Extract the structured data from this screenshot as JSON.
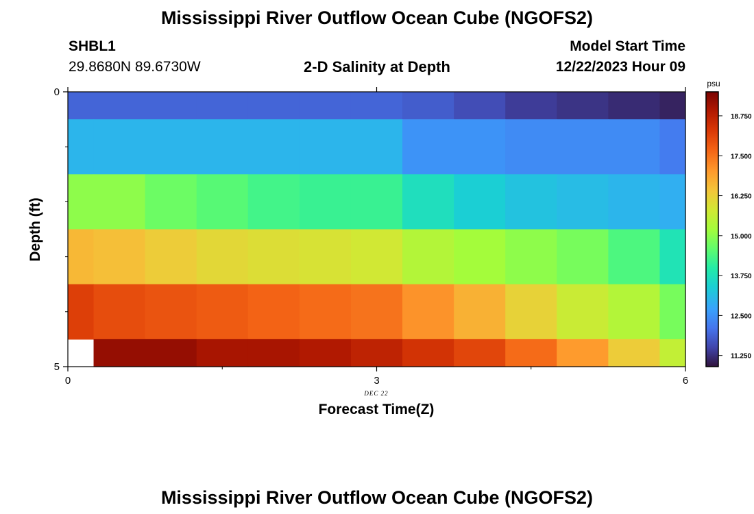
{
  "header": {
    "title": "Mississippi River Outflow Ocean Cube (NGOFS2)",
    "station_id": "SHBL1",
    "coordinates": "29.8680N  89.6730W",
    "plot_title": "2-D Salinity at Depth",
    "model_start_label": "Model Start Time",
    "model_start_value": "12/22/2023 Hour 09"
  },
  "footer": {
    "title": "Mississippi River Outflow Ocean Cube (NGOFS2)"
  },
  "chart_data": {
    "type": "heatmap",
    "xlabel": "Forecast Time(Z)",
    "ylabel": "Depth (ft)",
    "x_ticks": [
      0,
      3,
      6
    ],
    "y_ticks": [
      0,
      5
    ],
    "xlim": [
      0,
      6
    ],
    "ylim": [
      0,
      5
    ],
    "y_inverted": true,
    "date_annotation": "DEC 22",
    "x_columns": [
      0,
      0.5,
      1,
      1.5,
      2,
      2.5,
      3,
      3.5,
      4,
      4.5,
      5,
      5.5,
      6
    ],
    "depth_layers": [
      0,
      1,
      2,
      3,
      4,
      5
    ],
    "values": [
      [
        11.9,
        11.9,
        11.9,
        11.9,
        11.9,
        11.9,
        11.9,
        11.8,
        11.6,
        11.4,
        11.3,
        11.2,
        11.1
      ],
      [
        13.0,
        13.0,
        13.0,
        13.0,
        13.0,
        13.0,
        13.0,
        12.5,
        12.5,
        12.4,
        12.4,
        12.4,
        12.2
      ],
      [
        15.0,
        15.0,
        14.7,
        14.5,
        14.3,
        14.2,
        14.2,
        13.7,
        13.4,
        13.2,
        13.1,
        13.0,
        12.9
      ],
      [
        16.6,
        16.5,
        16.3,
        16.1,
        16.0,
        15.9,
        15.8,
        15.4,
        15.2,
        15.0,
        14.8,
        14.4,
        13.8
      ],
      [
        18.2,
        18.0,
        17.9,
        17.8,
        17.7,
        17.6,
        17.5,
        17.1,
        16.7,
        16.2,
        15.7,
        15.4,
        14.8
      ],
      [
        null,
        19.2,
        19.2,
        19.0,
        19.0,
        18.9,
        18.7,
        18.4,
        18.1,
        17.6,
        17.0,
        16.3,
        15.6
      ]
    ],
    "colorbar": {
      "unit": "psu",
      "ticks": [
        "18.750",
        "17.500",
        "16.250",
        "15.000",
        "13.750",
        "12.500",
        "11.250"
      ],
      "range": [
        10.9,
        19.5
      ]
    }
  }
}
